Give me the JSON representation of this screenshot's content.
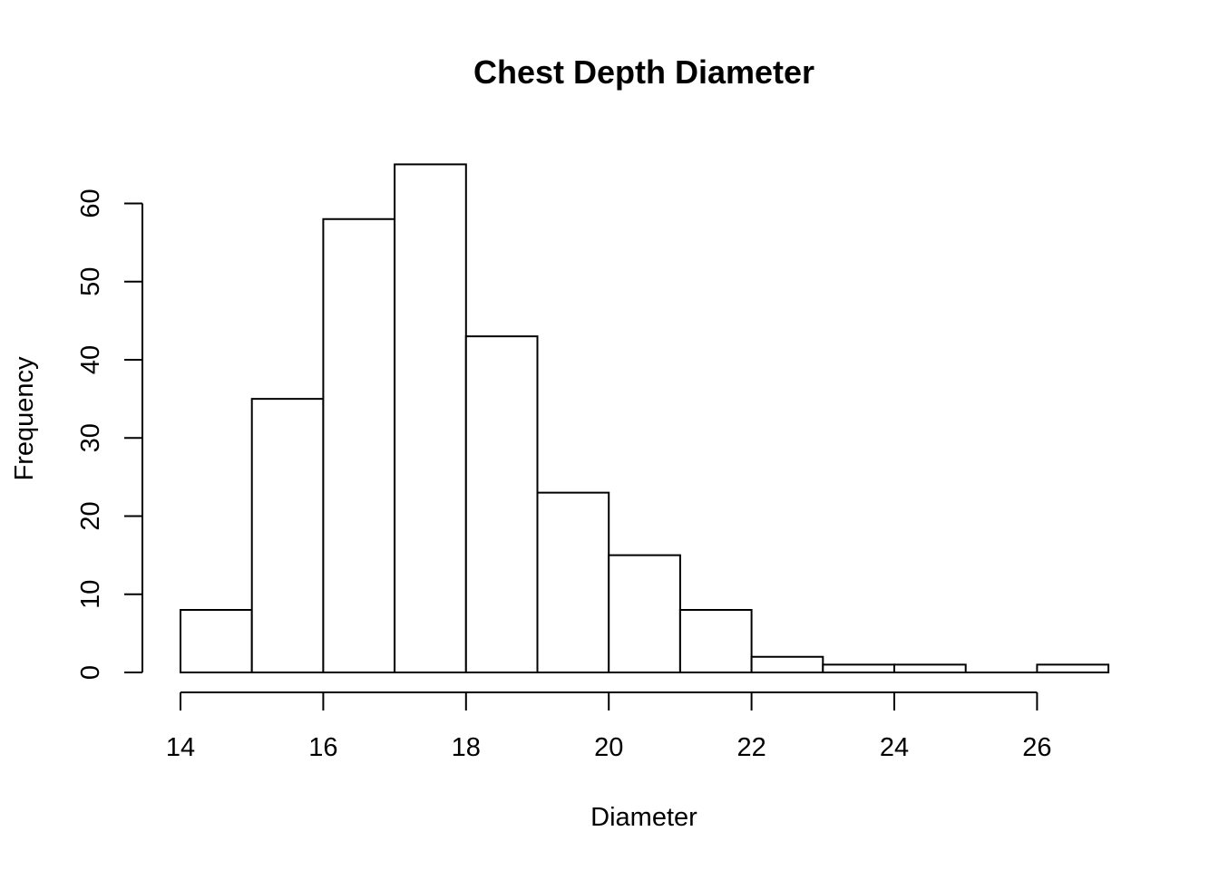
{
  "chart_data": {
    "type": "bar",
    "title": "Chest Depth Diameter",
    "xlabel": "Diameter",
    "ylabel": "Frequency",
    "bins": [
      {
        "from": 14,
        "to": 15,
        "count": 8
      },
      {
        "from": 15,
        "to": 16,
        "count": 35
      },
      {
        "from": 16,
        "to": 17,
        "count": 58
      },
      {
        "from": 17,
        "to": 18,
        "count": 65
      },
      {
        "from": 18,
        "to": 19,
        "count": 43
      },
      {
        "from": 19,
        "to": 20,
        "count": 23
      },
      {
        "from": 20,
        "to": 21,
        "count": 15
      },
      {
        "from": 21,
        "to": 22,
        "count": 8
      },
      {
        "from": 22,
        "to": 23,
        "count": 2
      },
      {
        "from": 23,
        "to": 24,
        "count": 1
      },
      {
        "from": 24,
        "to": 25,
        "count": 1
      },
      {
        "from": 25,
        "to": 26,
        "count": 0
      },
      {
        "from": 26,
        "to": 27,
        "count": 1
      }
    ],
    "x_ticks": [
      14,
      16,
      18,
      20,
      22,
      24,
      26
    ],
    "y_ticks": [
      0,
      10,
      20,
      30,
      40,
      50,
      60
    ],
    "xlim": [
      14,
      27
    ],
    "ylim": [
      0,
      65
    ],
    "grid": false
  }
}
